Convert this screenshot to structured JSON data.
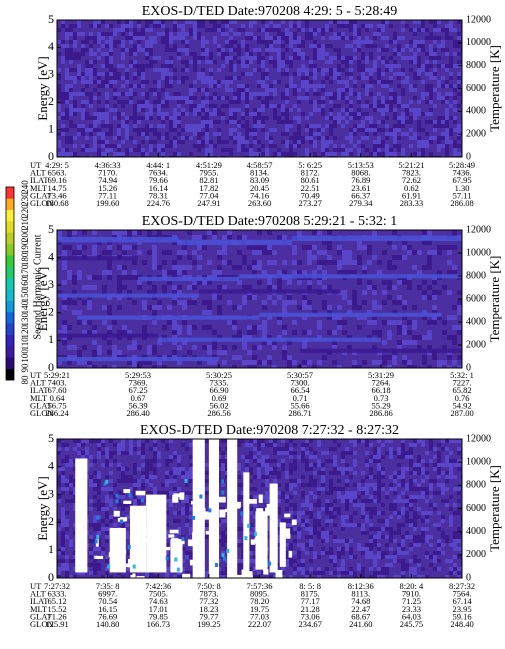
{
  "colorbar": {
    "label": "Second Harmonic Current",
    "ticks": [
      "80",
      "90",
      "100",
      "110",
      "120",
      "130",
      "140",
      "150",
      "160",
      "170",
      "180",
      "190",
      "200",
      "210",
      "220",
      "230",
      "240"
    ],
    "colors": [
      "#000000",
      "#2a0a78",
      "#3a1aa0",
      "#3322bb",
      "#2244cc",
      "#1166dd",
      "#1199dd",
      "#11bbcc",
      "#11ccaa",
      "#22cc66",
      "#33cc33",
      "#88cc22",
      "#bbcc22",
      "#dddd22",
      "#ffee33",
      "#ffaa22",
      "#ff3333"
    ],
    "range": [
      80,
      240
    ]
  },
  "colors": {
    "background": "#4b2fa0",
    "noise_a": "#3a1a8c",
    "noise_b": "#5a44c8",
    "band_light": "#4a52d8",
    "band_dark": "#3a1890",
    "gap": "#ffffff",
    "speck_blue": "#1e7fe0",
    "speck_cyan": "#2fb6e6"
  },
  "panels": [
    {
      "title": "EXOS-D/TED   Date:970208   4:29: 5 - 5:28:49",
      "ylabel_left": "Energy [eV]",
      "ylabel_right": "Temperature [K]",
      "yticks_left": [
        "0",
        "1",
        "2",
        "3",
        "4",
        "5"
      ],
      "yticks_right": [
        "0",
        "2000",
        "4000",
        "6000",
        "8000",
        "10000",
        "12000"
      ],
      "table_labels": [
        "UT",
        "ALT",
        "ILAT",
        "MLT",
        "GLAT",
        "GLON"
      ],
      "table_columns": [
        [
          "4:29: 5",
          "6563.",
          "69.16",
          "14.75",
          "73.46",
          "180.68"
        ],
        [
          "4:36:33",
          "7170.",
          "74.94",
          "15.26",
          "77.11",
          "199.60"
        ],
        [
          "4:44: 1",
          "7634.",
          "79.66",
          "16.14",
          "78.31",
          "224.76"
        ],
        [
          "4:51:29",
          "7955.",
          "82.81",
          "17.82",
          "77.04",
          "247.91"
        ],
        [
          "4:58:57",
          "8134.",
          "83.09",
          "20.45",
          "74.16",
          "263.60"
        ],
        [
          "5: 6:25",
          "8172.",
          "80.61",
          "22.51",
          "70.49",
          "273.27"
        ],
        [
          "5:13:53",
          "8068.",
          "76.89",
          "23.61",
          "66.37",
          "279.34"
        ],
        [
          "5:21:21",
          "7823.",
          "72.62",
          "0.62",
          "61.91",
          "283.33"
        ],
        [
          "5:28:49",
          "7436.",
          "67.95",
          "1.30",
          "57.11",
          "286.08"
        ]
      ]
    },
    {
      "title": "EXOS-D/TED   Date:970208   5:29:21 - 5:32: 1",
      "ylabel_left": "Energy [eV]",
      "ylabel_right": "Temperature [K]",
      "yticks_left": [
        "0",
        "1",
        "2",
        "3",
        "4",
        "5"
      ],
      "yticks_right": [
        "0",
        "2000",
        "4000",
        "6000",
        "8000",
        "10000",
        "12000"
      ],
      "table_labels": [
        "UT",
        "ALT",
        "ILAT",
        "MLT",
        "GLAT",
        "GLON"
      ],
      "table_columns": [
        [
          "5:29:21",
          "7403.",
          "67.60",
          "0.64",
          "56.75",
          "286.24"
        ],
        [
          "5:29:53",
          "7369.",
          "67.25",
          "0.67",
          "56.39",
          "286.40"
        ],
        [
          "5:30:25",
          "7335.",
          "66.90",
          "0.69",
          "56.02",
          "286.56"
        ],
        [
          "5:30:57",
          "7300.",
          "66.54",
          "0.71",
          "55.66",
          "286.71"
        ],
        [
          "5:31:29",
          "7264.",
          "66.18",
          "0.73",
          "55.29",
          "286.86"
        ],
        [
          "5:32: 1",
          "7227.",
          "65.82",
          "0.76",
          "54.92",
          "287.00"
        ]
      ]
    },
    {
      "title": "EXOS-D/TED   Date:970208   7:27:32 - 8:27:32",
      "ylabel_left": "Energy [eV]",
      "ylabel_right": "Temperature [K]",
      "yticks_left": [
        "0",
        "1",
        "2",
        "3",
        "4",
        "5"
      ],
      "yticks_right": [
        "0",
        "2000",
        "4000",
        "6000",
        "8000",
        "10000",
        "12000"
      ],
      "table_labels": [
        "UT",
        "ALT",
        "ILAT",
        "MLT",
        "GLAT",
        "GLON"
      ],
      "table_columns": [
        [
          "7:27:32",
          "6333.",
          "65.12",
          "15.52",
          "71.26",
          "125.91"
        ],
        [
          "7:35: 8",
          "6997.",
          "70.54",
          "16.15",
          "76.69",
          "140.80"
        ],
        [
          "7:42:36",
          "7505.",
          "74.63",
          "17.01",
          "79.85",
          "166.73"
        ],
        [
          "7:50: 8",
          "7873.",
          "77.32",
          "18.23",
          "79.77",
          "199.25"
        ],
        [
          "7:57:36",
          "8095.",
          "78.20",
          "19.75",
          "77.03",
          "222.07"
        ],
        [
          "8: 5: 8",
          "8175.",
          "77.17",
          "21.28",
          "73.06",
          "234.67"
        ],
        [
          "8:12:36",
          "8113.",
          "74.68",
          "22.47",
          "68.67",
          "241.60"
        ],
        [
          "8:20: 4",
          "7910.",
          "71.25",
          "23.33",
          "64.03",
          "245.75"
        ],
        [
          "8:27:32",
          "7564.",
          "67.14",
          "23.95",
          "59.16",
          "248.40"
        ]
      ]
    }
  ],
  "chart_data": [
    {
      "type": "heatmap",
      "title": "EXOS-D/TED   Date:970208   4:29: 5 - 5:28:49",
      "xlabel": "UT",
      "ylabel": "Energy [eV]",
      "ylabel_right": "Temperature [K]",
      "ylim": [
        0,
        5
      ],
      "ylim_right": [
        0,
        12000
      ],
      "x_ticks": [
        "4:29: 5",
        "4:36:33",
        "4:44: 1",
        "4:51:29",
        "4:58:57",
        "5: 6:25",
        "5:13:53",
        "5:21:21",
        "5:28:49"
      ],
      "colorbar_label": "Second Harmonic Current",
      "colorbar_range": [
        80,
        240
      ],
      "description": "uniform low-level noise"
    },
    {
      "type": "heatmap",
      "title": "EXOS-D/TED   Date:970208   5:29:21 - 5:32: 1",
      "xlabel": "UT",
      "ylabel": "Energy [eV]",
      "ylabel_right": "Temperature [K]",
      "ylim": [
        0,
        5
      ],
      "ylim_right": [
        0,
        12000
      ],
      "x_ticks": [
        "5:29:21",
        "5:29:53",
        "5:30:25",
        "5:30:57",
        "5:31:29",
        "5:32: 1"
      ],
      "colorbar_label": "Second Harmonic Current",
      "colorbar_range": [
        80,
        240
      ],
      "description": "horizontal bands"
    },
    {
      "type": "heatmap",
      "title": "EXOS-D/TED   Date:970208   7:27:32 - 8:27:32",
      "xlabel": "UT",
      "ylabel": "Energy [eV]",
      "ylabel_right": "Temperature [K]",
      "ylim": [
        0,
        5
      ],
      "ylim_right": [
        0,
        12000
      ],
      "x_ticks": [
        "7:27:32",
        "7:35: 8",
        "7:42:36",
        "7:50: 8",
        "7:57:36",
        "8: 5: 8",
        "8:12:36",
        "8:20: 4",
        "8:27:32"
      ],
      "colorbar_label": "Second Harmonic Current",
      "colorbar_range": [
        80,
        240
      ],
      "description": "data gaps (white) in early portion"
    }
  ]
}
